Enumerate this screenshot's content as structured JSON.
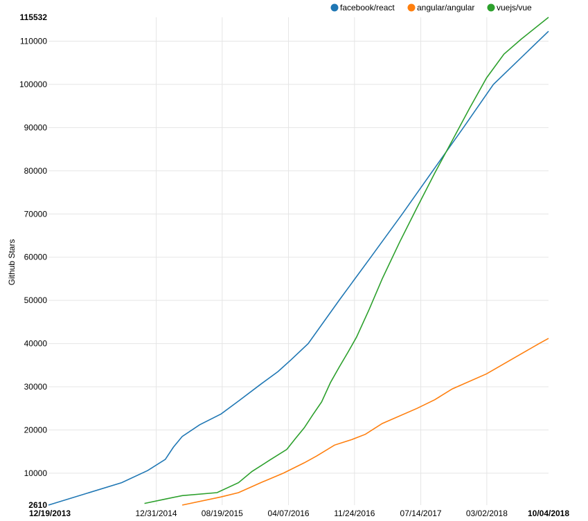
{
  "chart_data": {
    "type": "line",
    "title": "",
    "xlabel": "",
    "ylabel": "Github Stars",
    "ylim": [
      2610,
      115532
    ],
    "xlim": [
      "12/19/2013",
      "10/04/2018"
    ],
    "grid": true,
    "legend_position": "top-right",
    "x_ticks": [
      "12/19/2013",
      "12/31/2014",
      "08/19/2015",
      "04/07/2016",
      "11/24/2016",
      "07/14/2017",
      "03/02/2018",
      "10/04/2018"
    ],
    "x_ticks_bold": [
      "12/19/2013",
      "10/04/2018"
    ],
    "y_ticks": [
      2610,
      10000,
      20000,
      30000,
      40000,
      50000,
      60000,
      70000,
      80000,
      90000,
      100000,
      110000,
      115532
    ],
    "y_ticks_bold": [
      2610,
      115532
    ],
    "series": [
      {
        "name": "facebook/react",
        "color": "#1f77b4",
        "points": [
          [
            "12/19/2013",
            2610
          ],
          [
            "09/01/2014",
            7800
          ],
          [
            "12/01/2014",
            10600
          ],
          [
            "02/01/2015",
            13200
          ],
          [
            "03/01/2015",
            16000
          ],
          [
            "04/01/2015",
            18500
          ],
          [
            "06/01/2015",
            21200
          ],
          [
            "08/15/2015",
            23700
          ],
          [
            "10/15/2015",
            26700
          ],
          [
            "01/01/2016",
            30600
          ],
          [
            "03/01/2016",
            33500
          ],
          [
            "04/15/2016",
            36200
          ],
          [
            "06/15/2016",
            40000
          ],
          [
            "10/01/2016",
            50000
          ],
          [
            "01/20/2017",
            60000
          ],
          [
            "05/10/2017",
            70000
          ],
          [
            "08/25/2017",
            80000
          ],
          [
            "12/10/2017",
            90000
          ],
          [
            "03/25/2018",
            100000
          ],
          [
            "10/04/2018",
            112300
          ]
        ]
      },
      {
        "name": "angular/angular",
        "color": "#ff7f0e",
        "points": [
          [
            "04/01/2015",
            2610
          ],
          [
            "08/15/2015",
            4500
          ],
          [
            "10/15/2015",
            5500
          ],
          [
            "01/01/2016",
            7800
          ],
          [
            "03/20/2016",
            10000
          ],
          [
            "06/01/2016",
            12400
          ],
          [
            "07/15/2016",
            14000
          ],
          [
            "09/15/2016",
            16500
          ],
          [
            "11/15/2016",
            17800
          ],
          [
            "01/01/2017",
            19000
          ],
          [
            "03/01/2017",
            21500
          ],
          [
            "07/01/2017",
            25000
          ],
          [
            "09/01/2017",
            27000
          ],
          [
            "11/01/2017",
            29500
          ],
          [
            "03/01/2018",
            33000
          ],
          [
            "06/01/2018",
            36500
          ],
          [
            "09/01/2018",
            40000
          ],
          [
            "10/04/2018",
            41200
          ]
        ]
      },
      {
        "name": "vuejs/vue",
        "color": "#2ca02c",
        "points": [
          [
            "11/20/2014",
            3000
          ],
          [
            "02/01/2015",
            4000
          ],
          [
            "04/01/2015",
            4800
          ],
          [
            "08/01/2015",
            5500
          ],
          [
            "10/15/2015",
            7800
          ],
          [
            "12/01/2015",
            10400
          ],
          [
            "02/01/2016",
            13000
          ],
          [
            "04/01/2016",
            15500
          ],
          [
            "05/01/2016",
            18000
          ],
          [
            "06/01/2016",
            20500
          ],
          [
            "07/01/2016",
            23500
          ],
          [
            "08/01/2016",
            26500
          ],
          [
            "09/01/2016",
            31000
          ],
          [
            "10/01/2016",
            34500
          ],
          [
            "11/01/2016",
            38000
          ],
          [
            "12/01/2016",
            41500
          ],
          [
            "01/15/2017",
            48000
          ],
          [
            "03/01/2017",
            55000
          ],
          [
            "05/01/2017",
            63500
          ],
          [
            "07/01/2017",
            71500
          ],
          [
            "09/01/2017",
            79500
          ],
          [
            "11/01/2017",
            87000
          ],
          [
            "01/01/2018",
            94500
          ],
          [
            "03/01/2018",
            101500
          ],
          [
            "05/01/2018",
            107000
          ],
          [
            "07/01/2018",
            110500
          ],
          [
            "10/04/2018",
            115532
          ]
        ]
      }
    ]
  }
}
